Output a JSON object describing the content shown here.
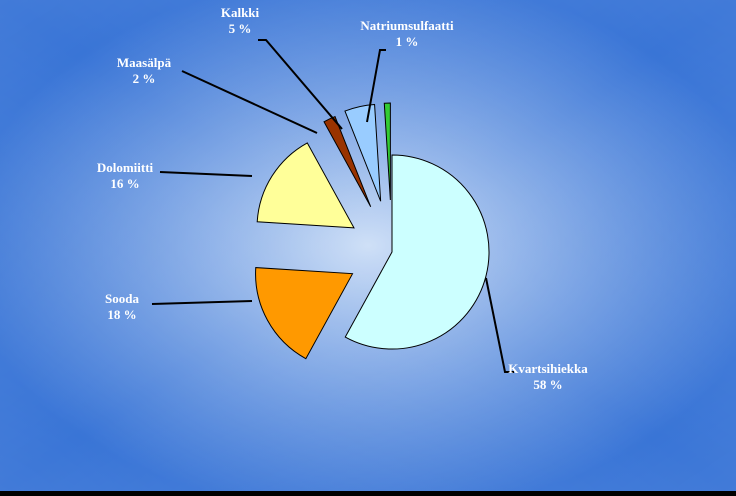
{
  "chart_data": {
    "type": "pie",
    "exploded": true,
    "legend": "none",
    "data_labels": "outside-with-leader-lines",
    "slices": [
      {
        "label": "Kvartsihiekka",
        "value": 58,
        "value_text": "58 %",
        "color": "#ccffff"
      },
      {
        "label": "Sooda",
        "value": 18,
        "value_text": "18 %",
        "color": "#ff9900"
      },
      {
        "label": "Dolomiitti",
        "value": 16,
        "value_text": "16 %",
        "color": "#ffff99"
      },
      {
        "label": "Maasälpä",
        "value": 2,
        "value_text": "2 %",
        "color": "#993300"
      },
      {
        "label": "Kalkki",
        "value": 5,
        "value_text": "5 %",
        "color": "#99ccff"
      },
      {
        "label": "Natriumsulfaatti",
        "value": 1,
        "value_text": "1 %",
        "color": "#33cc33"
      }
    ]
  },
  "background": {
    "center_color": "#cfe0f7",
    "edge_color": "#1a5fd0"
  }
}
